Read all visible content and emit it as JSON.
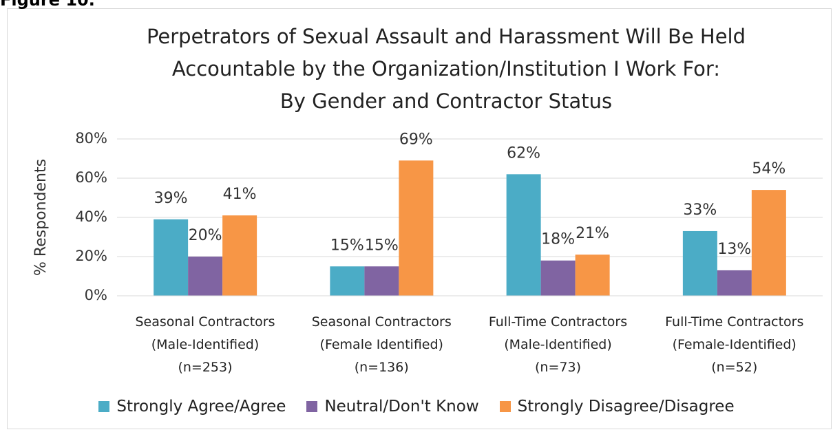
{
  "figure_label": "Figure 10.",
  "chart_data": {
    "type": "bar",
    "title": "Perpetrators of Sexual Assault and Harassment Will Be Held\nAccountable by the Organization/Institution I Work For:\nBy Gender and Contractor Status",
    "y_label": "% Respondents",
    "categories": [
      "Seasonal Contractors\n(Male-Identified)\n(n=253)",
      "Seasonal Contractors\n(Female Identified)\n(n=136)",
      "Full-Time Contractors\n(Male-Identified)\n(n=73)",
      "Full-Time Contractors\n(Female-Identified)\n(n=52)"
    ],
    "series": [
      {
        "name": "Strongly Agree/Agree",
        "color": "#4bacc6",
        "values": [
          39,
          15,
          62,
          33
        ],
        "value_labels": [
          "39%",
          "15%",
          "62%",
          "33%"
        ]
      },
      {
        "name": "Neutral/Don't Know",
        "color": "#8064a2",
        "values": [
          20,
          15,
          18,
          13
        ],
        "value_labels": [
          "20%",
          "15%",
          "18%",
          "13%"
        ]
      },
      {
        "name": "Strongly Disagree/Disagree",
        "color": "#f79646",
        "values": [
          41,
          69,
          21,
          54
        ],
        "value_labels": [
          "41%",
          "69%",
          "21%",
          "54%"
        ]
      }
    ],
    "ylim": [
      0,
      80
    ],
    "yticks": [
      {
        "value": 0,
        "label": "0%"
      },
      {
        "value": 20,
        "label": "20%"
      },
      {
        "value": 40,
        "label": "40%"
      },
      {
        "value": 60,
        "label": "60%"
      },
      {
        "value": 80,
        "label": "80%"
      }
    ],
    "grid": true,
    "legend": "bottom"
  }
}
